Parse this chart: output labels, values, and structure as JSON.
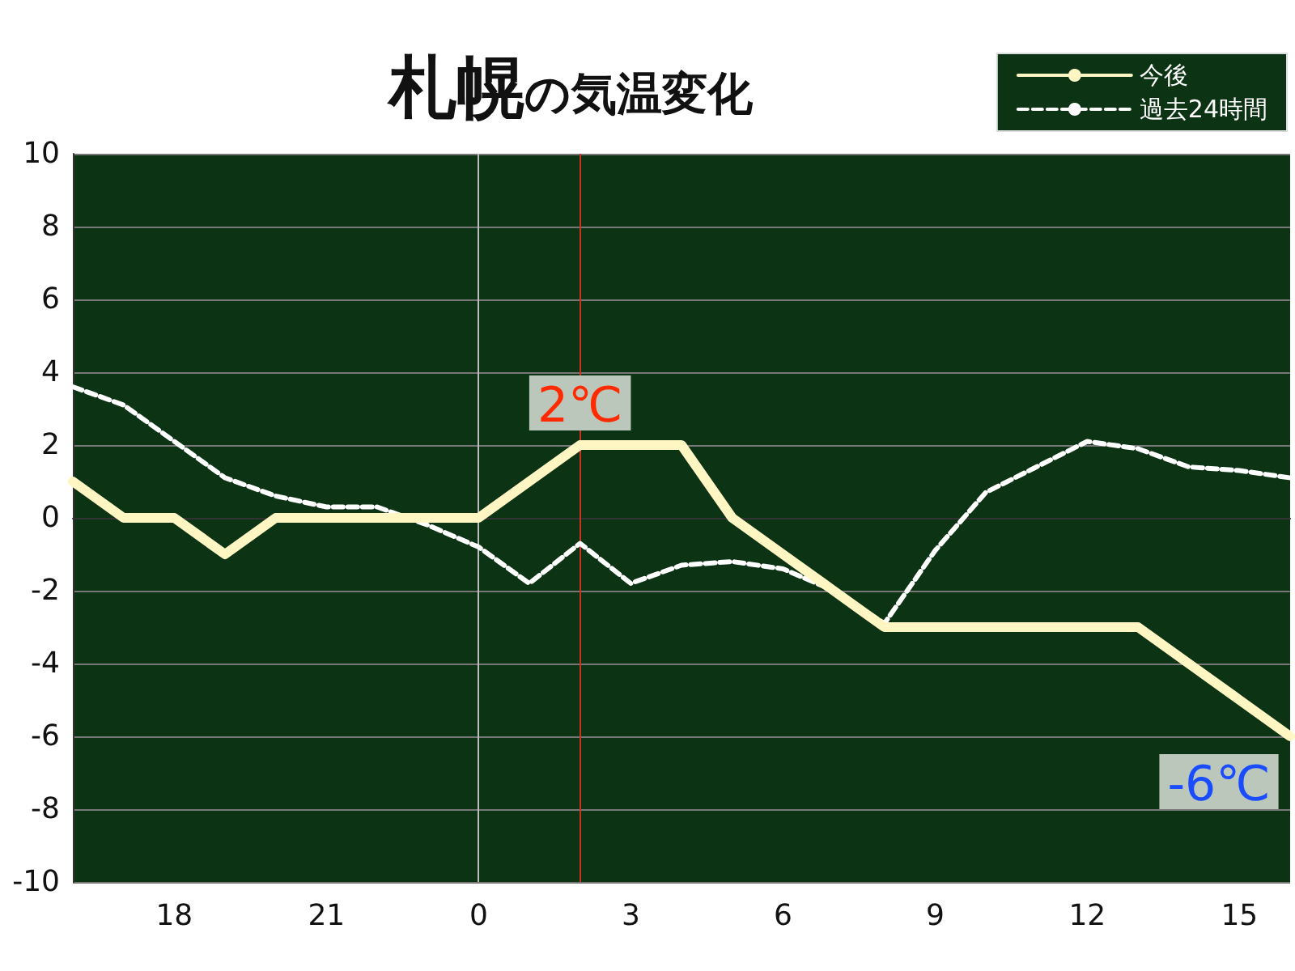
{
  "chart_data": {
    "type": "line",
    "title": "札幌の気温変化",
    "categories": [
      null,
      null,
      "18",
      null,
      null,
      "21",
      null,
      null,
      "0",
      null,
      null,
      "3",
      null,
      null,
      "6",
      null,
      null,
      "9",
      null,
      null,
      "12",
      null,
      null,
      "15",
      null
    ],
    "series": [
      {
        "name": "今後",
        "color": "#fff6c4",
        "line_style": "solid",
        "values": [
          1,
          0,
          0,
          -1,
          0,
          0,
          0,
          0,
          0,
          1,
          2,
          2,
          2,
          0,
          -1,
          -2,
          -3,
          -3,
          -3,
          -3,
          -3,
          -3,
          -4,
          -5,
          -6
        ],
        "value_labels": [
          null,
          null,
          null,
          null,
          null,
          null,
          null,
          null,
          null,
          null,
          "2℃",
          null,
          null,
          null,
          null,
          null,
          null,
          null,
          null,
          null,
          null,
          null,
          null,
          null,
          "-6℃"
        ]
      },
      {
        "name": "過去24時間",
        "color": "#ffffff",
        "line_style": "dashed",
        "values": [
          3.6,
          3.1,
          2.1,
          1.1,
          0.6,
          0.3,
          0.3,
          -0.2,
          -0.8,
          -1.8,
          -0.7,
          -1.8,
          -1.3,
          -1.2,
          -1.4,
          -2,
          -2.9,
          -0.9,
          0.7,
          1.4,
          2.1,
          1.9,
          1.4,
          1.3,
          1.1
        ]
      }
    ],
    "ylim": [
      -10,
      10
    ],
    "yticks": [
      -10,
      -8,
      -6,
      -4,
      -2,
      0,
      2,
      4,
      6,
      8,
      10
    ],
    "grid": "y",
    "legend": "top right",
    "marker": "none",
    "ref_lines": [
      {
        "axis": "x",
        "value": "0",
        "color": "#bdbdbd"
      }
    ]
  }
}
